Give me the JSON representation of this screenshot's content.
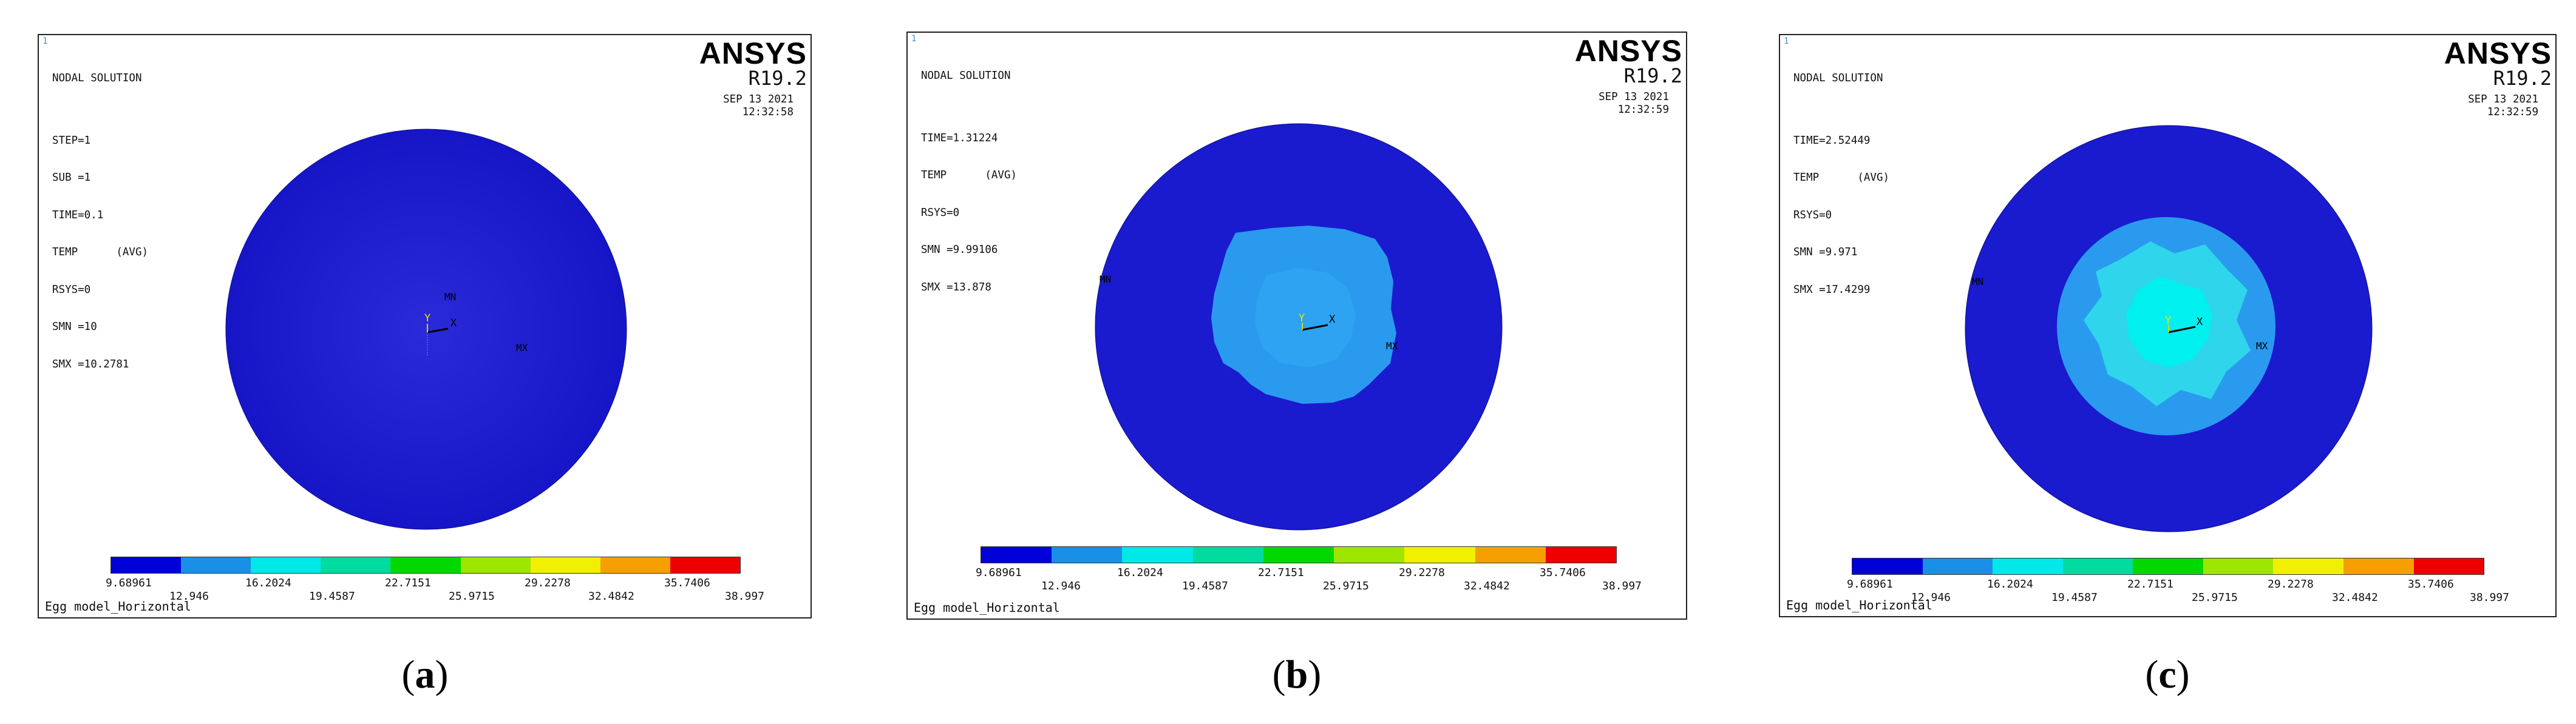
{
  "colorbar": {
    "colors": [
      "#0000d8",
      "#1a8fe6",
      "#00e8e8",
      "#00dba0",
      "#00d800",
      "#9ee600",
      "#f0f000",
      "#f5a000",
      "#ee0000"
    ],
    "labels_top": [
      "9.68961",
      "16.2024",
      "22.7151",
      "29.2278",
      "35.7406"
    ],
    "labels_bottom": [
      "12.946",
      "19.4587",
      "25.9715",
      "32.4842",
      "38.997"
    ]
  },
  "panels": [
    {
      "corner": "1",
      "brand": "ANSYS",
      "version": "R19.2",
      "date": "SEP 13 2021",
      "time": "12:32:58",
      "info": [
        "NODAL SOLUTION",
        "",
        "STEP=1",
        "SUB =1",
        "TIME=0.1",
        "TEMP      (AVG)",
        "RSYS=0",
        "SMN =10",
        "SMX =10.2781"
      ],
      "mn_label": "MN",
      "mx_label": "MX",
      "axis_y": "Y",
      "axis_x": "X",
      "footer": "Egg model_Horizontal",
      "caption": "a"
    },
    {
      "corner": "1",
      "brand": "ANSYS",
      "version": "R19.2",
      "date": "SEP 13 2021",
      "time": "12:32:59",
      "info": [
        "NODAL SOLUTION",
        "",
        "TIME=1.31224",
        "TEMP      (AVG)",
        "RSYS=0",
        "SMN =9.99106",
        "SMX =13.878"
      ],
      "mn_label": "MN",
      "mx_label": "MX",
      "axis_y": "Y",
      "axis_x": "X",
      "footer": "Egg model_Horizontal",
      "caption": "b"
    },
    {
      "corner": "1",
      "brand": "ANSYS",
      "version": "R19.2",
      "date": "SEP 13 2021",
      "time": "12:32:59",
      "info": [
        "NODAL SOLUTION",
        "",
        "TIME=2.52449",
        "TEMP      (AVG)",
        "RSYS=0",
        "SMN =9.971",
        "SMX =17.4299"
      ],
      "mn_label": "MN",
      "mx_label": "MX",
      "axis_y": "Y",
      "axis_x": "X",
      "footer": "Egg model_Horizontal",
      "caption": "c"
    }
  ]
}
